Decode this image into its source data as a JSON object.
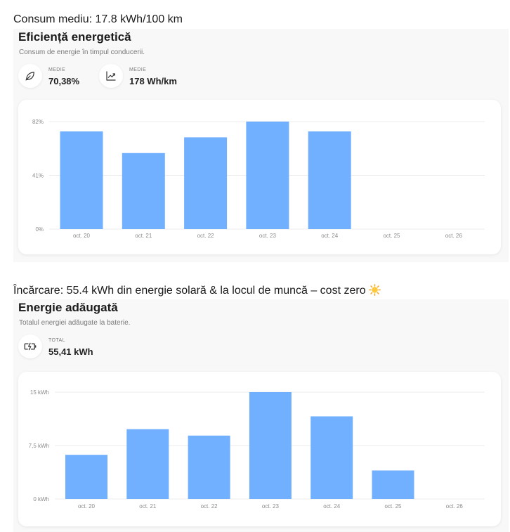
{
  "section1": {
    "caption": "Consum mediu: 17.8 kWh/100 km",
    "title": "Eficiență energetică",
    "subtitle": "Consum de energie în timpul conducerii.",
    "stats": [
      {
        "icon": "leaf-icon",
        "label": "MEDIE",
        "value": "70,38%"
      },
      {
        "icon": "trend-chart-icon",
        "label": "MEDIE",
        "value": "178 Wh/km"
      }
    ]
  },
  "section2": {
    "caption": "Încărcare: 55.4 kWh din energie solară & la locul de muncă – cost zero",
    "caption_emoji": "sun-icon",
    "title": "Energie adăugată",
    "subtitle": "Totalul energiei adăugate la baterie.",
    "stats": [
      {
        "icon": "battery-charging-icon",
        "label": "TOTAL",
        "value": "55,41 kWh"
      }
    ]
  },
  "chart_data": [
    {
      "type": "bar",
      "categories": [
        "oct. 20",
        "oct. 21",
        "oct. 22",
        "oct. 23",
        "oct. 24",
        "oct. 25",
        "oct. 26"
      ],
      "values": [
        74.5,
        58,
        70,
        82,
        74.5,
        null,
        null
      ],
      "ylim": [
        0,
        82
      ],
      "yticks": [
        0,
        41,
        82
      ],
      "ytick_labels": [
        "0%",
        "41%",
        "82%"
      ],
      "grid": true,
      "color": "#70b0ff"
    },
    {
      "type": "bar",
      "categories": [
        "oct. 20",
        "oct. 21",
        "oct. 22",
        "oct. 23",
        "oct. 24",
        "oct. 25",
        "oct. 26"
      ],
      "values": [
        6.2,
        9.8,
        8.9,
        15,
        11.6,
        4,
        null
      ],
      "ylim": [
        0,
        15
      ],
      "yticks": [
        0,
        7.5,
        15
      ],
      "ytick_labels": [
        "0 kWh",
        "7,5 kWh",
        "15 kWh"
      ],
      "grid": true,
      "color": "#70b0ff"
    }
  ]
}
